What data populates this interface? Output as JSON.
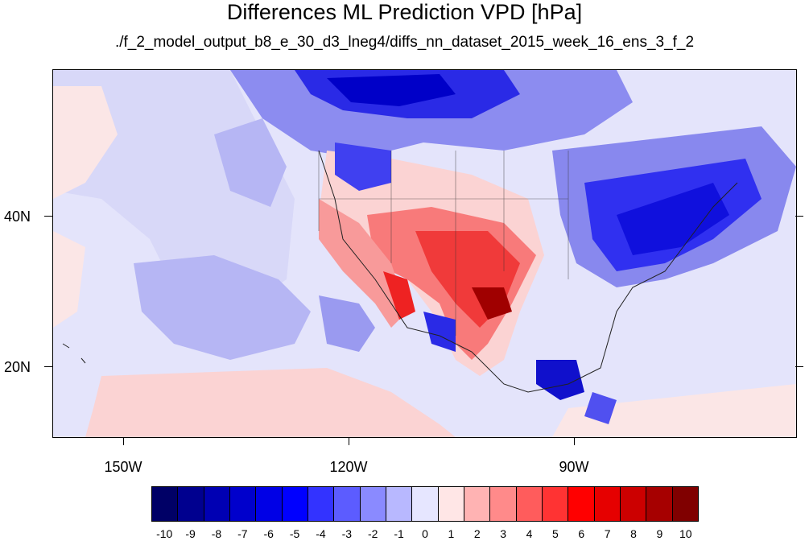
{
  "title": "Differences ML Prediction VPD [hPa]",
  "subtitle": "./f_2_model_output_b8_e_30_d3_lneg4/diffs_nn_dataset_2015_week_16_ens_3_f_2",
  "axes": {
    "y_labels": [
      "40N",
      "20N"
    ],
    "x_labels": [
      "150W",
      "120W",
      "90W"
    ]
  },
  "colorbar": {
    "labels": [
      "-10",
      "-9",
      "-8",
      "-7",
      "-6",
      "-5",
      "-4",
      "-3",
      "-2",
      "-1",
      "0",
      "1",
      "2",
      "3",
      "4",
      "5",
      "6",
      "7",
      "8",
      "9",
      "10"
    ],
    "colors": [
      "#000066",
      "#00008f",
      "#0000b3",
      "#0000cc",
      "#0000e6",
      "#0000ff",
      "#3333ff",
      "#5c5cff",
      "#8a8aff",
      "#b8b8ff",
      "#e6e6ff",
      "#ffe6e6",
      "#ffb3b3",
      "#ff8a8a",
      "#ff5c5c",
      "#ff3333",
      "#ff0000",
      "#e60000",
      "#cc0000",
      "#a60000",
      "#800000"
    ]
  }
}
